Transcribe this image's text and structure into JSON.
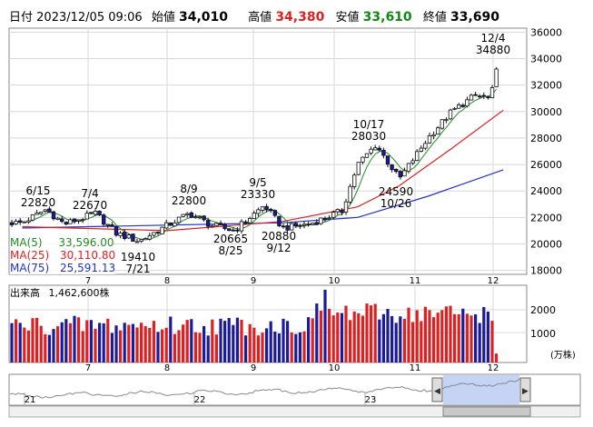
{
  "header": {
    "date_label": "日付",
    "date": "2023/12/05 09:06",
    "open_label": "始値",
    "open": "34,010",
    "high_label": "高値",
    "high": "34,380",
    "low_label": "安値",
    "low": "33,610",
    "close_label": "終値",
    "close": "33,690"
  },
  "legend": {
    "ma5": {
      "label": "MA(5)",
      "value": "33,596.00",
      "color": "#228b22"
    },
    "ma25": {
      "label": "MA(25)",
      "value": "30,110.80",
      "color": "#e02020"
    },
    "ma75": {
      "label": "MA(75)",
      "value": "25,591.13",
      "color": "#2233cc"
    }
  },
  "volume": {
    "label": "出来高",
    "value": "1,462,600株",
    "unit": "(万株)",
    "y_ticks": [
      "2000",
      "1000"
    ]
  },
  "colors": {
    "up": "#ffffff",
    "down": "#1a1a9a",
    "vol_up": "#e02020",
    "vol_down": "#1a1a9a",
    "ma5": "#228b22",
    "ma25": "#e02020",
    "ma75": "#2233cc"
  },
  "chart_data": {
    "type": "candlestick",
    "y_ticks": [
      36000,
      34000,
      32000,
      30000,
      28000,
      26000,
      24000,
      22000,
      20000,
      18000
    ],
    "ylim": [
      17700,
      36300
    ],
    "x_month_labels": [
      "7",
      "8",
      "9",
      "10",
      "11",
      "12"
    ],
    "annotations": [
      {
        "date": "6/15",
        "price": "22820"
      },
      {
        "date": "7/4",
        "price": "22670"
      },
      {
        "date": "7/21",
        "price": "19410"
      },
      {
        "date": "8/9",
        "price": "22800"
      },
      {
        "date": "8/25",
        "price": "20665"
      },
      {
        "date": "9/5",
        "price": "23330"
      },
      {
        "date": "9/12",
        "price": "20880"
      },
      {
        "date": "10/17",
        "price": "28030"
      },
      {
        "date": "10/26",
        "price": "24590"
      },
      {
        "date": "12/4",
        "price": "34880"
      }
    ],
    "anchors": [
      {
        "date": "6/06",
        "price": 21600
      },
      {
        "date": "6/15",
        "price": 22600
      },
      {
        "date": "6/22",
        "price": 21500
      },
      {
        "date": "7/04",
        "price": 22300
      },
      {
        "date": "7/12",
        "price": 20800
      },
      {
        "date": "7/21",
        "price": 20200
      },
      {
        "date": "8/01",
        "price": 21400
      },
      {
        "date": "8/09",
        "price": 22300
      },
      {
        "date": "8/17",
        "price": 21400
      },
      {
        "date": "8/25",
        "price": 21000
      },
      {
        "date": "9/05",
        "price": 22900
      },
      {
        "date": "9/12",
        "price": 21200
      },
      {
        "date": "9/22",
        "price": 21500
      },
      {
        "date": "10/04",
        "price": 22500
      },
      {
        "date": "10/10",
        "price": 26000
      },
      {
        "date": "10/17",
        "price": 27500
      },
      {
        "date": "10/26",
        "price": 24900
      },
      {
        "date": "11/06",
        "price": 28000
      },
      {
        "date": "11/15",
        "price": 30000
      },
      {
        "date": "11/24",
        "price": 31200
      },
      {
        "date": "11/30",
        "price": 31000
      },
      {
        "date": "12/04",
        "price": 34500
      },
      {
        "date": "12/05",
        "price": 33690
      }
    ],
    "ma75_points": [
      {
        "date": "6/06",
        "price": 21200
      },
      {
        "date": "9/12",
        "price": 21600
      },
      {
        "date": "10/10",
        "price": 22000
      },
      {
        "date": "11/06",
        "price": 23600
      },
      {
        "date": "12/05",
        "price": 25600
      }
    ],
    "ma25_points": [
      {
        "date": "6/06",
        "price": 21300
      },
      {
        "date": "8/01",
        "price": 21000
      },
      {
        "date": "9/12",
        "price": 21700
      },
      {
        "date": "10/10",
        "price": 22800
      },
      {
        "date": "10/26",
        "price": 24400
      },
      {
        "date": "11/15",
        "price": 27200
      },
      {
        "date": "12/05",
        "price": 30100
      }
    ]
  },
  "navigator": {
    "labels": [
      "21",
      "22",
      "23"
    ]
  }
}
